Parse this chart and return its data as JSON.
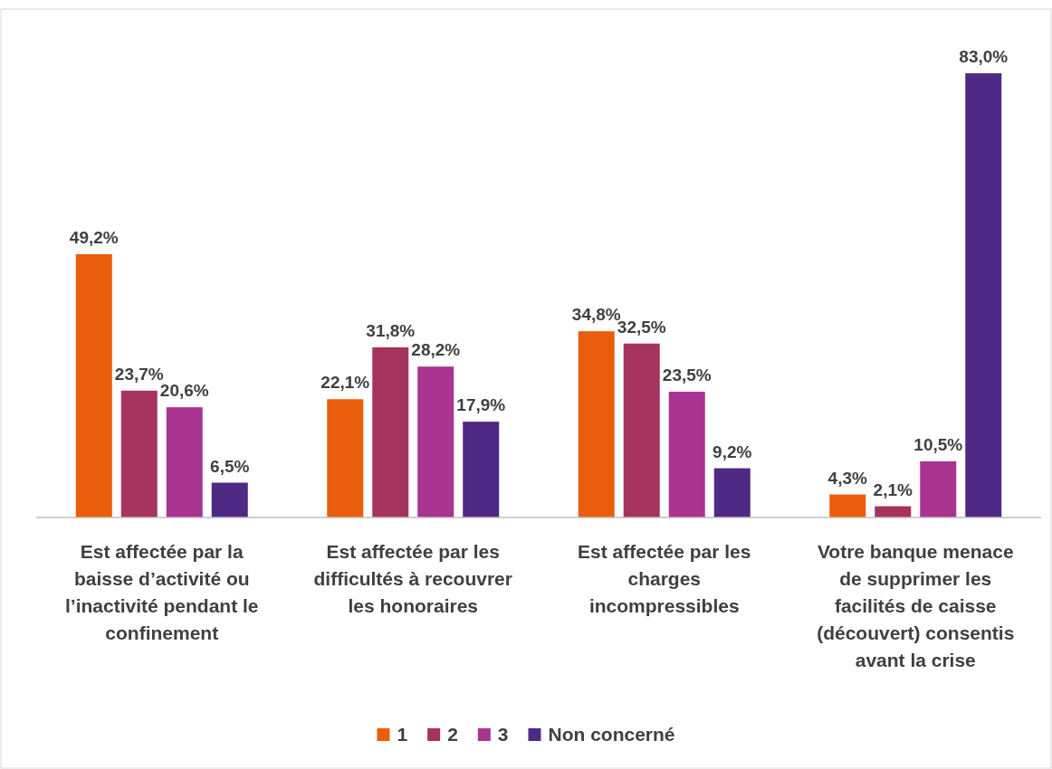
{
  "chart_data": {
    "type": "bar",
    "categories": [
      "Est affectée par la baisse d’activité ou l’inactivité pendant le confinement",
      "Est affectée par les difficultés à recouvrer les honoraires",
      "Est affectée par les charges incompressibles",
      "Votre banque menace de supprimer les facilités de caisse (découvert) consentis avant la crise"
    ],
    "series": [
      {
        "name": "1",
        "color": "#e95d0c",
        "values": [
          49.2,
          22.1,
          34.8,
          4.3
        ],
        "value_labels": [
          "49,2%",
          "22,1%",
          "34,8%",
          "4,3%"
        ]
      },
      {
        "name": "2",
        "color": "#a5335d",
        "values": [
          23.7,
          31.8,
          32.5,
          2.1
        ],
        "value_labels": [
          "23,7%",
          "31,8%",
          "32,5%",
          "2,1%"
        ]
      },
      {
        "name": "3",
        "color": "#a8348f",
        "values": [
          20.6,
          28.2,
          23.5,
          10.5
        ],
        "value_labels": [
          "20,6%",
          "28,2%",
          "23,5%",
          "10,5%"
        ]
      },
      {
        "name": "Non concerné",
        "color": "#4e2a84",
        "values": [
          6.5,
          17.9,
          9.2,
          83.0
        ],
        "value_labels": [
          "6,5%",
          "17,9%",
          "9,2%",
          "83,0%"
        ]
      }
    ],
    "legend": "bottom"
  }
}
